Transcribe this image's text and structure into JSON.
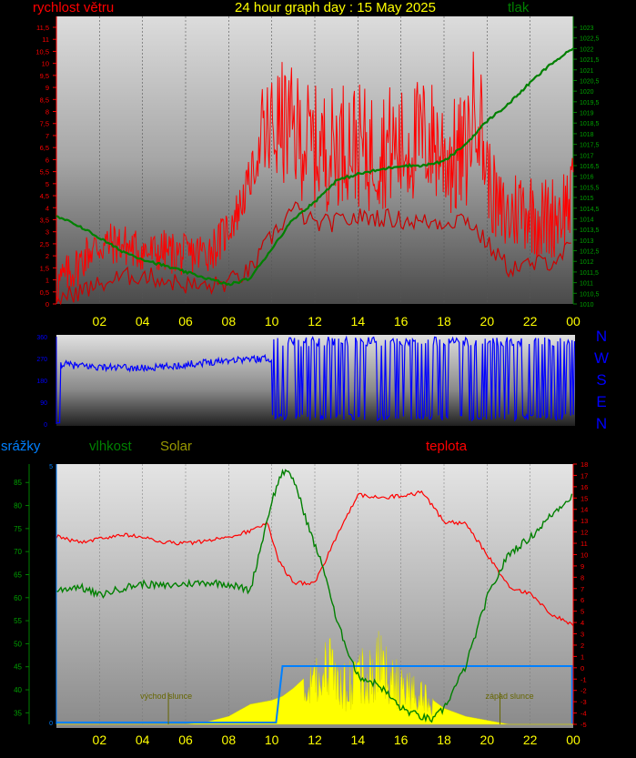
{
  "header": {
    "title": "24 hour graph day : 15 May 2025",
    "wind_label": "rychlost větru",
    "pressure_label": "tlak"
  },
  "direction": {
    "letters": [
      "N",
      "W",
      "S",
      "E",
      "N"
    ]
  },
  "lower": {
    "precip_label": "srážky",
    "humidity_label": "vlhkost",
    "solar_label": "Solar",
    "temp_label": "teplota",
    "sunrise_label": "východ slunce",
    "sunset_label": "západ slunce"
  },
  "colors": {
    "wind": "#ff0000",
    "pressure": "#008000",
    "direction": "#0000ff",
    "humidity": "#008000",
    "temperature": "#ff0000",
    "solar": "#ffff00",
    "precip": "#0080ff",
    "hour_labels": "#ffff00",
    "title": "#ffff00"
  },
  "chart_data": [
    {
      "type": "line",
      "name": "wind",
      "x_ticks": [
        "02",
        "04",
        "06",
        "08",
        "10",
        "12",
        "14",
        "16",
        "18",
        "20",
        "22",
        "00"
      ],
      "y_left_ticks": [
        "0",
        "0,5",
        "1",
        "1,5",
        "2",
        "2,5",
        "3",
        "3,5",
        "4",
        "4,5",
        "5",
        "5,5",
        "6",
        "6,5",
        "7",
        "7,5",
        "8",
        "8,5",
        "9",
        "9,5",
        "10",
        "10,5",
        "11",
        "11,5"
      ],
      "y_right_ticks": [
        "1010",
        "1010,5",
        "1011",
        "1011,5",
        "1012",
        "1012,5",
        "1013",
        "1013,5",
        "1014",
        "1014,5",
        "1015",
        "1015,5",
        "1016",
        "1016,5",
        "1017",
        "1017,5",
        "1018",
        "1018,5",
        "1019",
        "1019,5",
        "1020",
        "1020,5",
        "1021",
        "1021,5",
        "1022",
        "1022,5",
        "1023"
      ],
      "y_left_range": [
        0,
        11.5
      ],
      "y_right_range": [
        1010,
        1023
      ],
      "x_range_hours": [
        0,
        24
      ],
      "series": [
        {
          "name": "rychlost větru",
          "kind": "gust",
          "x": [
            0,
            0.5,
            1,
            1.5,
            2,
            2.5,
            3,
            3.5,
            4,
            4.5,
            5,
            5.5,
            6,
            6.5,
            7,
            7.5,
            8,
            8.5,
            9,
            9.5,
            10,
            10.5,
            11,
            11.5,
            12,
            12.5,
            13,
            13.5,
            14,
            14.5,
            15,
            15.5,
            16,
            16.5,
            17,
            17.5,
            18,
            18.5,
            19,
            19.5,
            20,
            20.5,
            21,
            21.5,
            22,
            22.5,
            23,
            23.5,
            24
          ],
          "y": [
            0.8,
            1.2,
            1.6,
            2.2,
            2.4,
            2.5,
            2.5,
            2.3,
            2.2,
            2.1,
            2.2,
            2.1,
            2.0,
            2.1,
            2.2,
            2.5,
            3.2,
            4.0,
            5.2,
            6.5,
            7.2,
            7.5,
            7.2,
            6.8,
            6.5,
            6.4,
            6.6,
            6.9,
            6.6,
            6.3,
            6.5,
            6.6,
            6.4,
            6.7,
            6.9,
            6.8,
            6.3,
            6.0,
            6.2,
            8.8,
            5.5,
            3.8,
            3.6,
            4.1,
            3.9,
            3.5,
            3.6,
            4.0,
            4.4
          ]
        },
        {
          "name": "rychlost větru",
          "kind": "average",
          "x": [
            0,
            1,
            2,
            3,
            4,
            5,
            6,
            7,
            8,
            9,
            10,
            11,
            12,
            13,
            14,
            15,
            16,
            17,
            18,
            19,
            20,
            21,
            22,
            23,
            24
          ],
          "y": [
            0.2,
            0.5,
            0.8,
            1.1,
            1.2,
            1.0,
            0.8,
            0.7,
            0.9,
            1.4,
            2.8,
            4.0,
            3.3,
            3.4,
            3.6,
            3.6,
            3.5,
            3.4,
            3.4,
            3.6,
            2.5,
            1.5,
            1.6,
            1.8,
            2.4
          ]
        },
        {
          "name": "tlak",
          "axis": "right",
          "x": [
            0,
            1,
            2,
            3,
            4,
            5,
            6,
            7,
            8,
            9,
            10,
            11,
            12,
            13,
            14,
            15,
            16,
            17,
            18,
            19,
            20,
            21,
            22,
            23,
            24
          ],
          "y": [
            1014.1,
            1013.7,
            1013.1,
            1012.5,
            1012.1,
            1011.8,
            1011.5,
            1011.2,
            1010.9,
            1011.2,
            1012.6,
            1014.0,
            1014.8,
            1015.8,
            1016.1,
            1016.3,
            1016.5,
            1016.5,
            1016.7,
            1017.5,
            1018.6,
            1019.4,
            1020.4,
            1021.3,
            1022.0
          ]
        }
      ]
    },
    {
      "type": "line",
      "name": "wind-direction",
      "y_ticks": [
        "0",
        "90",
        "180",
        "270",
        "360"
      ],
      "y_range": [
        0,
        360
      ],
      "x_range_hours": [
        0,
        24
      ],
      "series": [
        {
          "name": "direction",
          "x": [
            0,
            1,
            2,
            3,
            4,
            5,
            6,
            7,
            8,
            9,
            10
          ],
          "y": [
            250,
            240,
            235,
            232,
            230,
            235,
            245,
            255,
            265,
            268,
            270
          ]
        }
      ],
      "gaps_note_hours": [
        10,
        24
      ]
    },
    {
      "type": "line",
      "name": "lower",
      "x_ticks": [
        "02",
        "04",
        "06",
        "08",
        "10",
        "12",
        "14",
        "16",
        "18",
        "20",
        "22",
        "00"
      ],
      "y_left_ticks": [
        "35",
        "40",
        "45",
        "50",
        "55",
        "60",
        "65",
        "70",
        "75",
        "80",
        "85"
      ],
      "y_left_range": [
        32.5,
        89
      ],
      "precip_ticks": [
        "0",
        "5"
      ],
      "y_right_ticks": [
        "18",
        "17",
        "16",
        "15",
        "14",
        "13",
        "12",
        "11",
        "10",
        "9",
        "8",
        "7",
        "6",
        "5",
        "4",
        "3",
        "2",
        "1",
        "0",
        "-1",
        "-2",
        "-3",
        "-4",
        "-5"
      ],
      "y_right_range": [
        -5,
        18
      ],
      "series": [
        {
          "name": "teplota",
          "x": [
            0,
            1,
            2,
            3,
            4,
            5,
            6,
            7,
            8,
            9,
            9.8,
            10.3,
            11,
            12,
            13,
            14,
            15,
            16,
            17,
            18,
            19,
            20,
            21,
            22,
            23,
            24
          ],
          "y": [
            11.6,
            11.1,
            11.4,
            11.8,
            11.5,
            11.1,
            11.0,
            11.2,
            11.6,
            12.1,
            12.9,
            9.5,
            7.5,
            7.5,
            11.5,
            15.3,
            15.0,
            15.2,
            15.5,
            12.9,
            12.7,
            10.0,
            7.2,
            6.5,
            4.7,
            3.8
          ]
        },
        {
          "name": "vlhkost",
          "x": [
            0,
            1,
            2,
            3,
            4,
            5,
            6,
            7,
            8,
            9,
            10,
            10.5,
            11,
            11.8,
            12.5,
            13,
            14,
            15,
            16,
            17,
            17.5,
            18,
            19,
            20,
            21,
            22,
            23,
            24
          ],
          "y": [
            61.5,
            62.5,
            60.5,
            62,
            63,
            62.5,
            63,
            63.3,
            63,
            61.5,
            81,
            87.5,
            86,
            74,
            65,
            55,
            43,
            41,
            36,
            34,
            33.5,
            36,
            45,
            60,
            69.5,
            73,
            78,
            82.5
          ]
        },
        {
          "name": "Solar",
          "x": [
            0,
            5,
            6,
            7,
            8,
            9,
            10,
            10.5,
            11,
            12,
            12.5,
            13,
            13.5,
            14,
            14.5,
            15,
            15.5,
            16,
            16.5,
            17,
            17.5,
            18,
            19,
            20,
            21,
            24
          ],
          "y": [
            0,
            0,
            0,
            0.03,
            0.1,
            0.25,
            0.3,
            0.35,
            0.45,
            0.7,
            1.0,
            0.9,
            0.6,
            0.95,
            0.8,
            1.05,
            0.8,
            0.65,
            0.6,
            0.5,
            0.3,
            0.2,
            0.1,
            0.05,
            0,
            0
          ]
        },
        {
          "name": "srážky",
          "x": [
            0,
            10.2,
            10.5,
            24
          ],
          "y": [
            0,
            0,
            1.1,
            1.1
          ]
        }
      ],
      "sunrise_hour": 5.2,
      "sunset_hour": 20.6
    }
  ]
}
